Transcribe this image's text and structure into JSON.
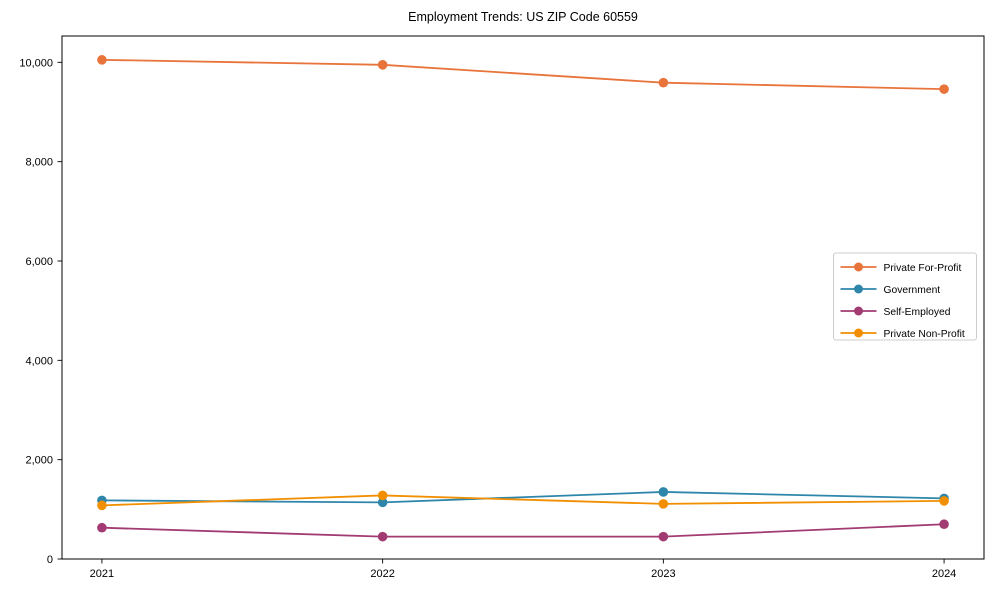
{
  "chart_data": {
    "type": "line",
    "title": "Employment Trends: US ZIP Code 60559",
    "x": [
      2021,
      2022,
      2023,
      2024
    ],
    "xtick_labels": [
      "2021",
      "2022",
      "2023",
      "2024"
    ],
    "yticks": [
      0,
      2000,
      4000,
      6000,
      8000,
      10000
    ],
    "ytick_labels": [
      "0",
      "2,000",
      "4,000",
      "6,000",
      "8,000",
      "10,000"
    ],
    "ylim": [
      0,
      10530
    ],
    "grid": false,
    "marker": "circle",
    "legend_position": "center-right",
    "frame_color": "#000000",
    "legend_border_color": "#cccccc",
    "series": [
      {
        "name": "Private For-Profit",
        "color": "#E8743B",
        "values": [
          10050,
          9950,
          9590,
          9460
        ]
      },
      {
        "name": "Government",
        "color": "#2E86AB",
        "values": [
          1180,
          1140,
          1350,
          1220
        ]
      },
      {
        "name": "Self-Employed",
        "color": "#A23B72",
        "values": [
          630,
          450,
          450,
          700
        ]
      },
      {
        "name": "Private Non-Profit",
        "color": "#F18F01",
        "values": [
          1080,
          1280,
          1110,
          1170
        ]
      }
    ]
  }
}
